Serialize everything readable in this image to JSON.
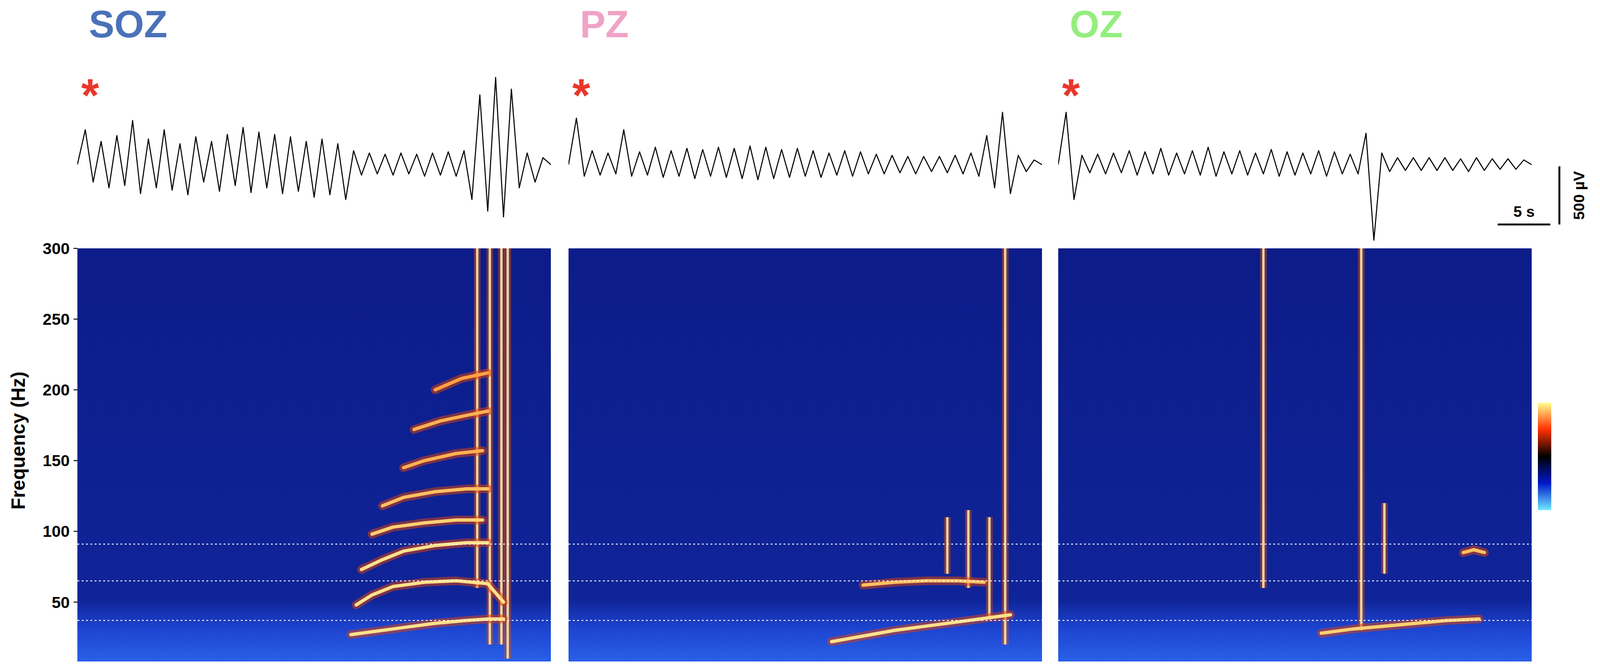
{
  "chart_data": {
    "type": "eeg_spectrogram",
    "ylabel": "Frequency (Hz)",
    "scale_bar": {
      "x": 5,
      "x_label": "5 s",
      "y": 500,
      "y_label": "500 µV"
    },
    "colorbar": {
      "colors": [
        "#ffff90",
        "#ff3000",
        "#000000",
        "#0018c8",
        "#70e8ff"
      ]
    },
    "panels": [
      {
        "title": "SOZ",
        "title_color": "#4a72b8",
        "annotation": "*",
        "annotation_color": "#e8372a",
        "trace": {
          "xlim": [
            0,
            45
          ],
          "ylim": [
            -700,
            800
          ],
          "tick_labels": false,
          "x": [
            0,
            0.75,
            1.5,
            2.25,
            3,
            3.75,
            4.5,
            5.25,
            6,
            6.75,
            7.5,
            8.25,
            9,
            9.75,
            10.5,
            11.25,
            12,
            12.75,
            13.5,
            14.25,
            15,
            15.75,
            16.5,
            17.25,
            18,
            18.75,
            19.5,
            20.25,
            21,
            21.75,
            22.5,
            23.25,
            24,
            24.75,
            25.5,
            26.25,
            27,
            27.75,
            28.5,
            29.25,
            30,
            30.75,
            31.5,
            32.25,
            33,
            33.75,
            34.5,
            35.25,
            36,
            36.75,
            37.5,
            38.25,
            39,
            39.75,
            40.5,
            41.25,
            42,
            42.75,
            43.5,
            44.25,
            45
          ],
          "values": [
            0,
            300,
            -150,
            200,
            -200,
            250,
            -180,
            380,
            -250,
            220,
            -200,
            300,
            -220,
            180,
            -260,
            240,
            -150,
            200,
            -230,
            260,
            -180,
            320,
            -240,
            280,
            -200,
            260,
            -250,
            240,
            -230,
            200,
            -280,
            220,
            -260,
            180,
            -300,
            120,
            -90,
            100,
            -80,
            90,
            -90,
            100,
            -80,
            90,
            -100,
            100,
            -90,
            110,
            -100,
            120,
            -300,
            600,
            -400,
            750,
            -450,
            650,
            -200,
            100,
            -150,
            60,
            0
          ]
        },
        "spectrogram": {
          "xlim": [
            0,
            45
          ],
          "ylim": [
            8,
            300
          ],
          "yticks": [
            50,
            100,
            150,
            200,
            250,
            300
          ],
          "tick_labels": "y",
          "hlines": [
            37,
            65,
            91
          ],
          "ridges": [
            {
              "color": "#ffe08a",
              "x": [
                26,
                28,
                31,
                34,
                37,
                39,
                40.5
              ],
              "values": [
                27,
                29,
                32,
                35,
                37,
                38,
                38
              ]
            },
            {
              "color": "#ffe08a",
              "x": [
                26.5,
                28,
                30,
                33,
                36,
                39,
                40.5
              ],
              "values": [
                48,
                55,
                61,
                64,
                65,
                63,
                50
              ]
            },
            {
              "color": "#ffe08a",
              "x": [
                27,
                29,
                31,
                34,
                37,
                39
              ],
              "values": [
                73,
                80,
                86,
                90,
                92,
                92
              ]
            },
            {
              "color": "#ffd070",
              "x": [
                28,
                30,
                33,
                36,
                38.5
              ],
              "values": [
                98,
                103,
                106,
                108,
                108
              ]
            },
            {
              "color": "#ffc060",
              "x": [
                29,
                31,
                34,
                37,
                39
              ],
              "values": [
                118,
                124,
                128,
                130,
                130
              ]
            },
            {
              "color": "#ffb050",
              "x": [
                31,
                33,
                36,
                38.5
              ],
              "values": [
                145,
                150,
                155,
                157
              ]
            },
            {
              "color": "#ffb050",
              "x": [
                32,
                34.5,
                37,
                39
              ],
              "values": [
                172,
                178,
                182,
                185
              ]
            },
            {
              "color": "#ffa040",
              "x": [
                34,
                36.5,
                39
              ],
              "values": [
                200,
                208,
                212
              ]
            }
          ],
          "bursts": [
            {
              "t": 38,
              "fmin": 60,
              "fmax": 300
            },
            {
              "t": 39.2,
              "fmin": 20,
              "fmax": 300
            },
            {
              "t": 40.3,
              "fmin": 20,
              "fmax": 300
            },
            {
              "t": 40.9,
              "fmin": 10,
              "fmax": 300
            }
          ]
        }
      },
      {
        "title": "PZ",
        "title_color": "#f0a3c6",
        "annotation": "*",
        "annotation_color": "#e8372a",
        "trace": {
          "xlim": [
            0,
            45
          ],
          "ylim": [
            -700,
            800
          ],
          "tick_labels": false,
          "x": [
            0,
            0.75,
            1.5,
            2.25,
            3,
            3.75,
            4.5,
            5.25,
            6,
            6.75,
            7.5,
            8.25,
            9,
            9.75,
            10.5,
            11.25,
            12,
            12.75,
            13.5,
            14.25,
            15,
            15.75,
            16.5,
            17.25,
            18,
            18.75,
            19.5,
            20.25,
            21,
            21.75,
            22.5,
            23.25,
            24,
            24.75,
            25.5,
            26.25,
            27,
            27.75,
            28.5,
            29.25,
            30,
            30.75,
            31.5,
            32.25,
            33,
            33.75,
            34.5,
            35.25,
            36,
            36.75,
            37.5,
            38.25,
            39,
            39.75,
            40.5,
            41.25,
            42,
            42.75,
            43.5,
            44.25,
            45
          ],
          "values": [
            0,
            400,
            -100,
            120,
            -90,
            100,
            -80,
            300,
            -100,
            110,
            -90,
            150,
            -110,
            120,
            -100,
            140,
            -120,
            130,
            -100,
            150,
            -110,
            140,
            -120,
            160,
            -130,
            150,
            -120,
            130,
            -110,
            140,
            -100,
            120,
            -110,
            100,
            -90,
            120,
            -100,
            110,
            -80,
            90,
            -80,
            80,
            -70,
            70,
            -80,
            70,
            -60,
            70,
            -70,
            80,
            -80,
            100,
            -100,
            250,
            -200,
            450,
            -250,
            80,
            -60,
            40,
            0
          ]
        },
        "spectrogram": {
          "xlim": [
            0,
            45
          ],
          "ylim": [
            8,
            300
          ],
          "tick_labels": false,
          "hlines": [
            37,
            65,
            91
          ],
          "ridges": [
            {
              "color": "#ffe08a",
              "x": [
                25,
                28,
                31,
                34,
                37,
                40,
                42
              ],
              "values": [
                22,
                26,
                30,
                33,
                36,
                39,
                41
              ]
            },
            {
              "color": "#ffc060",
              "x": [
                28,
                31,
                34,
                37,
                39.5
              ],
              "values": [
                62,
                64,
                65,
                65,
                64
              ]
            }
          ],
          "bursts": [
            {
              "t": 36,
              "fmin": 70,
              "fmax": 110
            },
            {
              "t": 38,
              "fmin": 60,
              "fmax": 115
            },
            {
              "t": 40,
              "fmin": 40,
              "fmax": 110
            },
            {
              "t": 41.5,
              "fmin": 20,
              "fmax": 300
            }
          ]
        }
      },
      {
        "title": "OZ",
        "title_color": "#94ee7e",
        "annotation": "*",
        "annotation_color": "#e8372a",
        "trace": {
          "xlim": [
            0,
            45
          ],
          "ylim": [
            -700,
            800
          ],
          "tick_labels": false,
          "x": [
            0,
            0.75,
            1.5,
            2.25,
            3,
            3.75,
            4.5,
            5.25,
            6,
            6.75,
            7.5,
            8.25,
            9,
            9.75,
            10.5,
            11.25,
            12,
            12.75,
            13.5,
            14.25,
            15,
            15.75,
            16.5,
            17.25,
            18,
            18.75,
            19.5,
            20.25,
            21,
            21.75,
            22.5,
            23.25,
            24,
            24.75,
            25.5,
            26.25,
            27,
            27.75,
            28.5,
            29.25,
            30,
            30.75,
            31.5,
            32.25,
            33,
            33.75,
            34.5,
            35.25,
            36,
            36.75,
            37.5,
            38.25,
            39,
            39.75,
            40.5,
            41.25,
            42,
            42.75,
            43.5,
            44.25,
            45
          ],
          "values": [
            0,
            450,
            -300,
            80,
            -70,
            90,
            -80,
            100,
            -70,
            120,
            -90,
            110,
            -80,
            140,
            -90,
            100,
            -80,
            120,
            -90,
            150,
            -100,
            110,
            -80,
            120,
            -90,
            100,
            -80,
            130,
            -100,
            110,
            -90,
            100,
            -80,
            120,
            -100,
            110,
            -80,
            90,
            -80,
            270,
            -650,
            100,
            -60,
            60,
            -50,
            60,
            -50,
            60,
            -50,
            60,
            -50,
            50,
            -60,
            60,
            -50,
            50,
            -40,
            50,
            -40,
            40,
            0
          ]
        },
        "spectrogram": {
          "xlim": [
            0,
            45
          ],
          "ylim": [
            8,
            300
          ],
          "tick_labels": false,
          "hlines": [
            37,
            65,
            91
          ],
          "ridges": [
            {
              "color": "#ffd070",
              "x": [
                25,
                28,
                31,
                34,
                37,
                40
              ],
              "values": [
                28,
                31,
                33,
                35,
                37,
                38
              ]
            },
            {
              "color": "#ffc060",
              "x": [
                38.5,
                39.5,
                40.5
              ],
              "values": [
                85,
                87,
                85
              ]
            }
          ],
          "bursts": [
            {
              "t": 19.5,
              "fmin": 60,
              "fmax": 300
            },
            {
              "t": 28.8,
              "fmin": 30,
              "fmax": 300
            },
            {
              "t": 31,
              "fmin": 70,
              "fmax": 120
            }
          ]
        }
      }
    ]
  }
}
